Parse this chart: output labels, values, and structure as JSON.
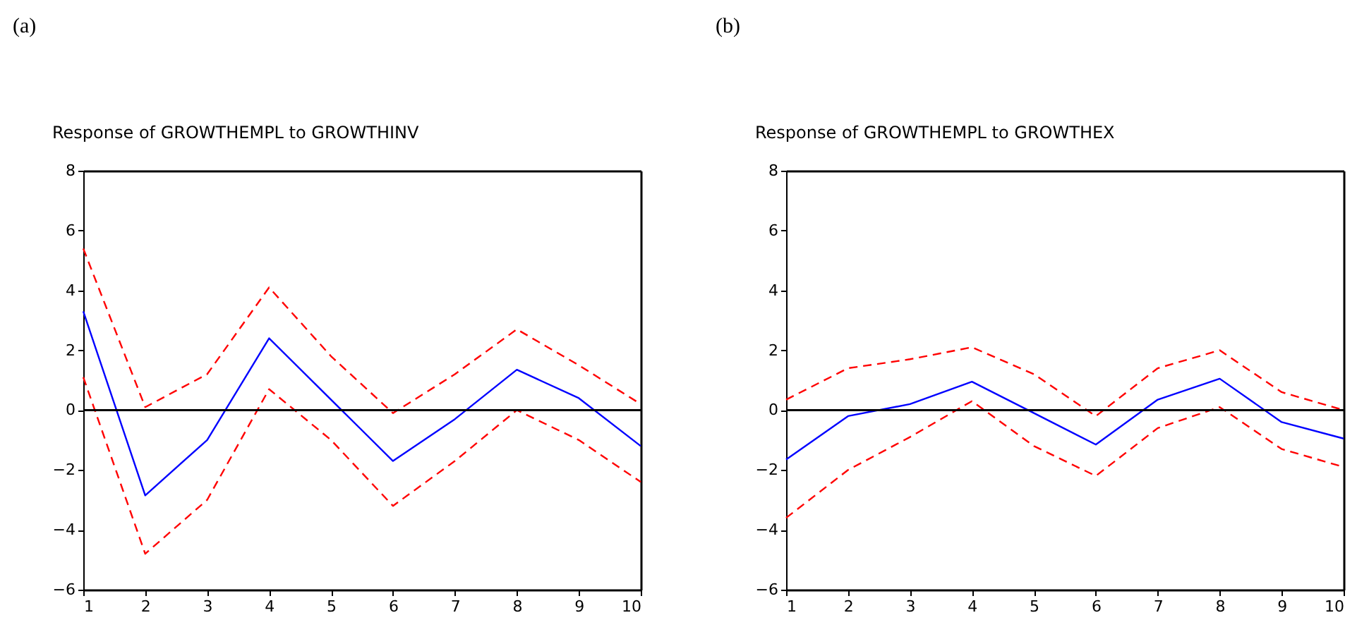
{
  "chart_data": [
    {
      "type": "line",
      "title": "Response of GROWTHEMPL to GROWTHINV",
      "annotations": [
        "(a)"
      ],
      "x": [
        1,
        2,
        3,
        4,
        5,
        6,
        7,
        8,
        9,
        10
      ],
      "xlim": [
        1,
        10
      ],
      "xticks": [
        1,
        2,
        3,
        4,
        5,
        6,
        7,
        8,
        9,
        10
      ],
      "ylim": [
        -6,
        8
      ],
      "yticks": [
        -6,
        -4,
        -2,
        0,
        2,
        4,
        6,
        8
      ],
      "grid": false,
      "marker": "none",
      "ref_lines": [
        {
          "axis": "y",
          "value": 0,
          "color": "#000000"
        }
      ],
      "series": [
        {
          "color": "#0000ff",
          "line_style": "solid",
          "values": [
            3.3,
            -2.85,
            -1.0,
            2.4,
            0.35,
            -1.7,
            -0.3,
            1.35,
            0.4,
            -1.2
          ]
        },
        {
          "color": "#ff0000",
          "line_style": "dashed",
          "values": [
            5.4,
            0.1,
            1.2,
            4.1,
            1.8,
            -0.1,
            1.2,
            2.7,
            1.5,
            0.2
          ]
        },
        {
          "color": "#ff0000",
          "line_style": "dashed",
          "values": [
            1.1,
            -4.8,
            -3.0,
            0.7,
            -1.0,
            -3.2,
            -1.7,
            0.0,
            -1.0,
            -2.4
          ]
        }
      ]
    },
    {
      "type": "line",
      "title": "Response of GROWTHEMPL to GROWTHEX",
      "annotations": [
        "(b)"
      ],
      "x": [
        1,
        2,
        3,
        4,
        5,
        6,
        7,
        8,
        9,
        10
      ],
      "xlim": [
        1,
        10
      ],
      "xticks": [
        1,
        2,
        3,
        4,
        5,
        6,
        7,
        8,
        9,
        10
      ],
      "ylim": [
        -6,
        8
      ],
      "yticks": [
        -6,
        -4,
        -2,
        0,
        2,
        4,
        6,
        8
      ],
      "grid": false,
      "marker": "none",
      "ref_lines": [
        {
          "axis": "y",
          "value": 0,
          "color": "#000000"
        }
      ],
      "series": [
        {
          "color": "#0000ff",
          "line_style": "solid",
          "values": [
            -1.65,
            -0.2,
            0.2,
            0.95,
            -0.1,
            -1.15,
            0.35,
            1.05,
            -0.4,
            -0.95
          ]
        },
        {
          "color": "#ff0000",
          "line_style": "dashed",
          "values": [
            0.35,
            1.4,
            1.7,
            2.1,
            1.2,
            -0.2,
            1.4,
            2.0,
            0.6,
            0.0
          ]
        },
        {
          "color": "#ff0000",
          "line_style": "dashed",
          "values": [
            -3.6,
            -2.0,
            -0.9,
            0.3,
            -1.2,
            -2.2,
            -0.6,
            0.1,
            -1.3,
            -1.9
          ]
        }
      ]
    }
  ]
}
